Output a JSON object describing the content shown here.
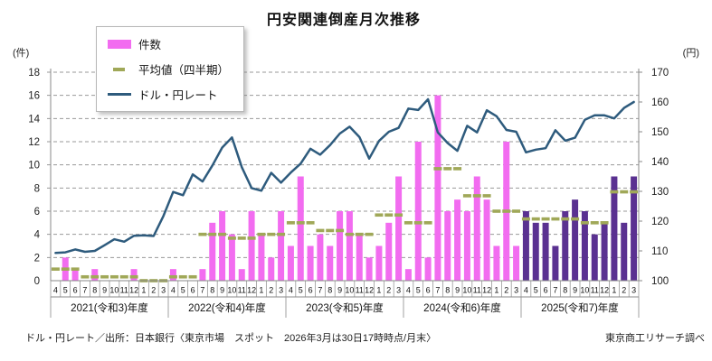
{
  "title": "円安関連倒産月次推移",
  "legend": {
    "items": [
      {
        "label": "件数",
        "swatch": "bar-swatch"
      },
      {
        "label": "平均値（四半期）",
        "swatch": "dash-swatch"
      },
      {
        "label": "ドル・円レート",
        "swatch": "line-swatch"
      }
    ]
  },
  "axes": {
    "left_unit": "(件)",
    "right_unit": "(円)"
  },
  "footer": {
    "source": "ドル・円レート／出所：日本銀行〈東京市場　スポット　2026年3月は30日17時時点/月末〉",
    "credit": "東京商工リサーチ調べ"
  },
  "colors": {
    "bar_pink": "#f26cf0",
    "bar_purple": "#5a3191",
    "avg_dash": "#a0a858",
    "fx_line": "#2e5b7d",
    "grid": "#9a9a9a",
    "frame": "#8a8a8a",
    "axis_text": "#222222"
  },
  "chart_data": {
    "type": "bar+line",
    "title": "円安関連倒産月次推移",
    "left_axis": {
      "label": "(件)",
      "min": 0,
      "max": 18,
      "step": 2
    },
    "right_axis": {
      "label": "(円)",
      "min": 100,
      "max": 170,
      "step": 10
    },
    "month_cycle": [
      "4",
      "5",
      "6",
      "7",
      "8",
      "9",
      "10",
      "11",
      "12",
      "1",
      "2",
      "3"
    ],
    "series": [
      {
        "name": "件数",
        "type": "bar",
        "axis": "left"
      },
      {
        "name": "平均値（四半期）",
        "type": "quarter_average_dash",
        "axis": "left"
      },
      {
        "name": "ドル・円レート",
        "type": "line",
        "axis": "right"
      }
    ],
    "fiscal_years": [
      {
        "label": "2021(令和3)年度",
        "bar_color": "pink",
        "counts": [
          0,
          2,
          1,
          0,
          1,
          0,
          0,
          0,
          1,
          0,
          0,
          0
        ],
        "quarter_avg": [
          1.0,
          0.33,
          0.33,
          0.0
        ],
        "usd_jpy": [
          109.3,
          109.5,
          110.5,
          109.7,
          110.0,
          111.9,
          113.9,
          113.1,
          115.1,
          115.2,
          115.0,
          121.7
        ]
      },
      {
        "label": "2022(令和4)年度",
        "bar_color": "pink",
        "counts": [
          1,
          0,
          0,
          1,
          5,
          6,
          4,
          1,
          6,
          4,
          2,
          6
        ],
        "quarter_avg": [
          0.33,
          4.0,
          3.67,
          4.0
        ],
        "usd_jpy": [
          129.8,
          128.7,
          135.7,
          133.3,
          138.7,
          144.7,
          148.1,
          138.1,
          131.1,
          130.2,
          136.2,
          132.9
        ]
      },
      {
        "label": "2023(令和5)年度",
        "bar_color": "pink",
        "counts": [
          3,
          9,
          3,
          4,
          3,
          6,
          6,
          4,
          2,
          3,
          5,
          9
        ],
        "quarter_avg": [
          5.0,
          4.33,
          4.0,
          5.67
        ],
        "usd_jpy": [
          136.3,
          139.3,
          144.3,
          142.3,
          145.5,
          149.4,
          151.7,
          148.2,
          141.0,
          146.9,
          150.0,
          151.3
        ]
      },
      {
        "label": "2024(令和6)年度",
        "bar_color": "pink",
        "counts": [
          1,
          12,
          2,
          16,
          6,
          7,
          6,
          9,
          7,
          3,
          12,
          3
        ],
        "quarter_avg": [
          5.0,
          9.67,
          7.33,
          6.0
        ],
        "usd_jpy": [
          157.8,
          157.3,
          160.9,
          149.8,
          146.2,
          143.6,
          152.0,
          149.8,
          157.2,
          155.2,
          150.6,
          150.0
        ]
      },
      {
        "label": "2025(令和7)年度",
        "bar_color": "purple",
        "counts": [
          6,
          5,
          5,
          3,
          6,
          7,
          6,
          4,
          5,
          9,
          5,
          9
        ],
        "quarter_avg": [
          5.33,
          5.33,
          5.0,
          7.67
        ],
        "usd_jpy": [
          143.1,
          144.0,
          144.5,
          150.5,
          147.0,
          148.0,
          154.0,
          155.5,
          155.5,
          154.5,
          158.0,
          160.0
        ]
      }
    ]
  }
}
